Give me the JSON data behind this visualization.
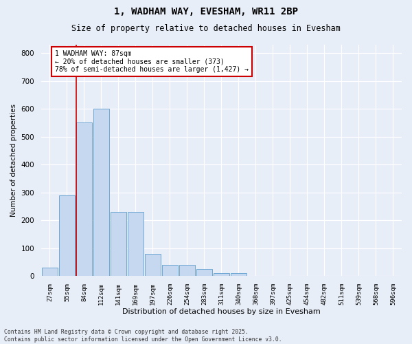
{
  "title1": "1, WADHAM WAY, EVESHAM, WR11 2BP",
  "title2": "Size of property relative to detached houses in Evesham",
  "xlabel": "Distribution of detached houses by size in Evesham",
  "ylabel": "Number of detached properties",
  "categories": [
    "27sqm",
    "55sqm",
    "84sqm",
    "112sqm",
    "141sqm",
    "169sqm",
    "197sqm",
    "226sqm",
    "254sqm",
    "283sqm",
    "311sqm",
    "340sqm",
    "368sqm",
    "397sqm",
    "425sqm",
    "454sqm",
    "482sqm",
    "511sqm",
    "539sqm",
    "568sqm",
    "596sqm"
  ],
  "values": [
    30,
    290,
    550,
    600,
    230,
    230,
    80,
    40,
    40,
    25,
    10,
    10,
    0,
    0,
    0,
    0,
    0,
    0,
    0,
    0,
    0
  ],
  "bar_color": "#c5d8f0",
  "bar_edge_color": "#6fa8d4",
  "vline_x_idx": 2,
  "vline_color": "#cc0000",
  "annotation_text": "1 WADHAM WAY: 87sqm\n← 20% of detached houses are smaller (373)\n78% of semi-detached houses are larger (1,427) →",
  "annotation_box_edgecolor": "#cc0000",
  "annotation_bg": "white",
  "ylim": [
    0,
    830
  ],
  "yticks": [
    0,
    100,
    200,
    300,
    400,
    500,
    600,
    700,
    800
  ],
  "footnote1": "Contains HM Land Registry data © Crown copyright and database right 2025.",
  "footnote2": "Contains public sector information licensed under the Open Government Licence v3.0.",
  "bg_color": "#e8eef8",
  "plot_bg": "#e8eef8",
  "grid_color": "white"
}
